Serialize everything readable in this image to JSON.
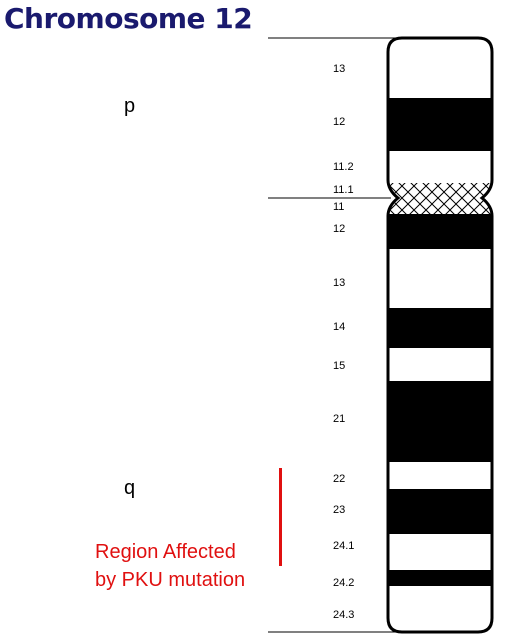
{
  "title": "Chromosome 12",
  "arms": {
    "p": "p",
    "q": "q"
  },
  "annotation": {
    "line1": "Region Affected",
    "line2": "by PKU mutation",
    "color": "#e01010"
  },
  "colors": {
    "title": "#1a1a6e",
    "band_dark": "#000000",
    "band_light": "#ffffff"
  },
  "bands": [
    {
      "label": "13",
      "stain": "light"
    },
    {
      "label": "12",
      "stain": "dark"
    },
    {
      "label": "11.2",
      "stain": "light"
    },
    {
      "label": "11.1",
      "stain": "centromere"
    },
    {
      "label": "11",
      "stain": "centromere"
    },
    {
      "label": "12",
      "stain": "dark"
    },
    {
      "label": "13",
      "stain": "light"
    },
    {
      "label": "14",
      "stain": "dark"
    },
    {
      "label": "15",
      "stain": "light"
    },
    {
      "label": "21",
      "stain": "dark"
    },
    {
      "label": "22",
      "stain": "light"
    },
    {
      "label": "23",
      "stain": "dark"
    },
    {
      "label": "24.1",
      "stain": "light"
    },
    {
      "label": "24.2",
      "stain": "dark"
    },
    {
      "label": "24.3",
      "stain": "light"
    }
  ]
}
